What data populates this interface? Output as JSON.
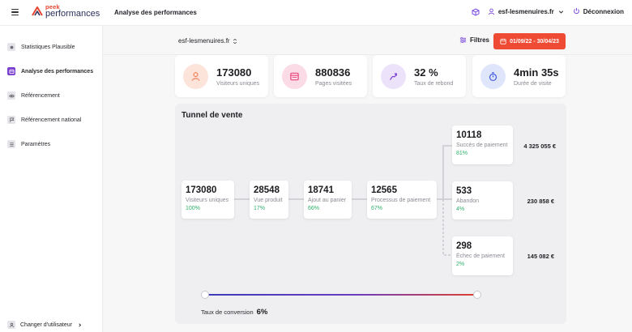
{
  "header": {
    "logo_line1": "peek",
    "logo_line2": "performances",
    "page_title": "Analyse des performances",
    "user": "esf-lesmenuires.fr",
    "logout": "Déconnexion"
  },
  "sidebar": {
    "items": [
      {
        "label": "Statistiques Plausible",
        "icon": "circle-icon"
      },
      {
        "label": "Analyse des performances",
        "icon": "chart-card-icon"
      },
      {
        "label": "Référencement",
        "icon": "eye-icon"
      },
      {
        "label": "Référencement national",
        "icon": "flag-icon"
      },
      {
        "label": "Paramètres",
        "icon": "sliders-icon"
      }
    ],
    "footer": "Changer d'utilisateur"
  },
  "filters": {
    "site": "esf-lesmenuires.fr",
    "filters_label": "Filtres",
    "date_range": "01/09/22 - 30/04/23"
  },
  "kpis": [
    {
      "value": "173080",
      "label": "Visiteurs uniques",
      "icon": "user-icon",
      "color": "#f6845b",
      "bg": "#fde4da"
    },
    {
      "value": "880836",
      "label": "Pages visitées",
      "icon": "browser-icon",
      "color": "#e8477a",
      "bg": "#fbdbe6"
    },
    {
      "value": "32 %",
      "label": "Taux de rebond",
      "icon": "bounce-arrow-icon",
      "color": "#7a3fd6",
      "bg": "#ece3fb"
    },
    {
      "value": "4min 35s",
      "label": "Durée de visite",
      "icon": "stopwatch-icon",
      "color": "#3f58e0",
      "bg": "#dfe5fb"
    }
  ],
  "funnel": {
    "title": "Tunnel de vente",
    "steps": [
      {
        "value": "173080",
        "label": "Visiteurs uniques",
        "percent": "100%"
      },
      {
        "value": "28548",
        "label": "Vue produit",
        "percent": "17%"
      },
      {
        "value": "18741",
        "label": "Ajout au panier",
        "percent": "66%"
      },
      {
        "value": "12565",
        "label": "Processus de paiement",
        "percent": "67%"
      }
    ],
    "outcomes": [
      {
        "value": "10118",
        "label": "Succès de paiement",
        "percent": "81%",
        "amount": "4 325 055 €"
      },
      {
        "value": "533",
        "label": "Abandon",
        "percent": "4%",
        "amount": "230 858 €"
      },
      {
        "value": "298",
        "label": "Échec de paiement",
        "percent": "2%",
        "amount": "145 082 €"
      }
    ],
    "conversion_label": "Taux de conversion",
    "conversion_value": "6%"
  }
}
